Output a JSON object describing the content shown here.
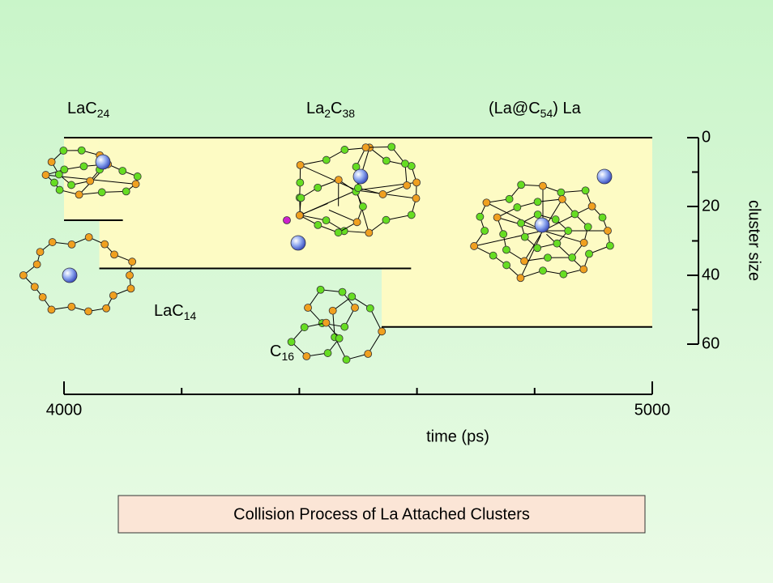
{
  "chart_data": {
    "type": "cluster-timeline",
    "caption": "Collision Process of La Attached Clusters",
    "xlabel": "time (ps)",
    "ylabel": "cluster size",
    "xlim": [
      4000,
      5000
    ],
    "xticks": [
      4000,
      5000
    ],
    "xminor_ticks": [
      4200,
      4400,
      4600,
      4800
    ],
    "ylim": [
      0,
      60
    ],
    "yticks": [
      0,
      20,
      40,
      60
    ],
    "yminor_ticks": [
      10,
      30,
      50
    ],
    "y_reversed": true,
    "shade_color": "#fdfbc4",
    "shade": {
      "x": [
        4000,
        4060,
        4540,
        5000
      ],
      "depth": [
        24,
        38,
        55
      ]
    },
    "levels": [
      {
        "y": 0,
        "x": [
          4000,
          5000
        ]
      },
      {
        "y": 24,
        "x": [
          4000,
          4100
        ]
      },
      {
        "y": 38,
        "x": [
          4060,
          4590
        ]
      },
      {
        "y": 55,
        "x": [
          4540,
          5000
        ]
      }
    ],
    "labels": [
      {
        "parts": [
          "LaC",
          "24"
        ]
      },
      {
        "parts": [
          "La",
          "2",
          "C",
          "38"
        ]
      },
      {
        "parts": [
          "(La@C",
          "54",
          ") La"
        ]
      },
      {
        "parts": [
          "LaC",
          "14"
        ]
      },
      {
        "parts": [
          "C",
          "16"
        ]
      }
    ]
  }
}
